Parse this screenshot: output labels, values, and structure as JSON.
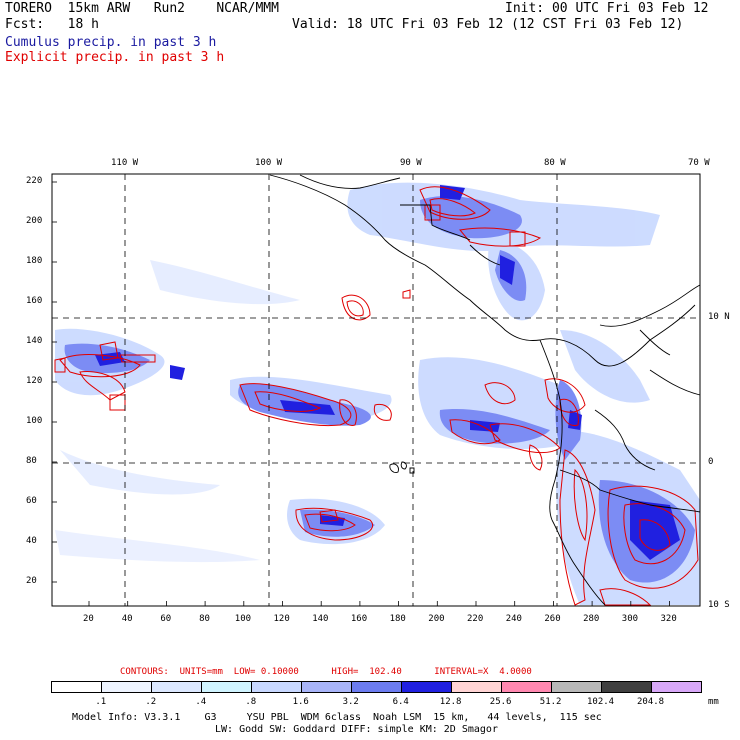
{
  "header": {
    "model": "TORERO  15km ARW   Run2    NCAR/MMM",
    "init": "Init: 00 UTC Fri 03 Feb 12",
    "fcst": "Fcst:   18 h",
    "valid": "Valid: 18 UTC Fri 03 Feb 12 (12 CST Fri 03 Feb 12)",
    "cumulus": "Cumulus precip. in past 3 h",
    "explicit": "Explicit precip. in past 3 h"
  },
  "map": {
    "top_lon_labels": [
      "110 W",
      "100 W",
      "90 W",
      "80 W",
      "70 W"
    ],
    "right_lat_labels": [
      "10 N",
      "0",
      "10 S"
    ],
    "y_ticks": [
      "220",
      "200",
      "180",
      "160",
      "140",
      "120",
      "100",
      "80",
      "60",
      "40",
      "20"
    ],
    "x_ticks": [
      "20",
      "40",
      "60",
      "80",
      "100",
      "120",
      "140",
      "160",
      "180",
      "200",
      "220",
      "240",
      "260",
      "280",
      "300",
      "320"
    ],
    "grid_style": "dashed",
    "colors": {
      "light_blue": "#c8d8ff",
      "mid_blue": "#7c8cf4",
      "dark_blue": "#2020e0",
      "contour_red": "#e00000",
      "coastline": "#000000"
    }
  },
  "contours_text": "CONTOURS:  UNITS=mm  LOW= 0.10000      HIGH=  102.40      INTERVAL=X  4.0000",
  "colorbar": {
    "labels": [
      ".1",
      ".2",
      ".4",
      ".8",
      "1.6",
      "3.2",
      "6.4",
      "12.8",
      "25.6",
      "51.2",
      "102.4",
      "204.8"
    ],
    "units": "mm",
    "colors": [
      "#ffffff",
      "#eef4ff",
      "#dce8ff",
      "#d0f4ff",
      "#c8d8ff",
      "#a8b4f8",
      "#6c7cf0",
      "#2020e0",
      "#ffd4d4",
      "#ff88b0",
      "#b8b8b8",
      "#404040",
      "#d8a8f8"
    ]
  },
  "footer": {
    "line1": "Model Info: V3.3.1    G3     YSU PBL  WDM 6class  Noah LSM  15 km,   44 levels,  115 sec",
    "line2": "LW: Godd SW: Goddard DIFF: simple KM: 2D Smagor"
  }
}
